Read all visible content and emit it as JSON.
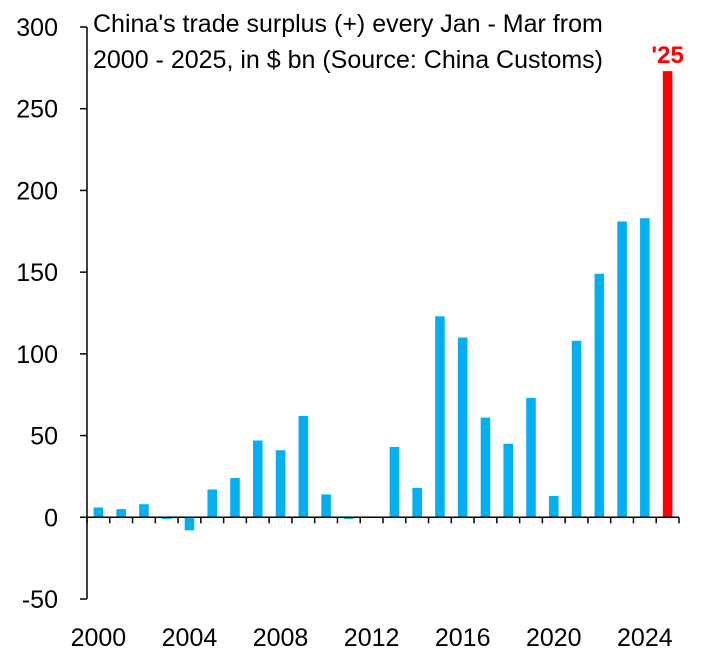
{
  "chart_data": {
    "type": "bar",
    "title_lines": [
      "China's trade surplus (+) every Jan - Mar from",
      "2000 - 2025, in $ bn (Source: China Customs)"
    ],
    "xlabel": "",
    "ylabel": "",
    "ylim": [
      -50,
      300
    ],
    "y_ticks": [
      -50,
      0,
      50,
      100,
      150,
      200,
      250,
      300
    ],
    "x_tick_labels": [
      "2000",
      "2004",
      "2008",
      "2012",
      "2016",
      "2020",
      "2024"
    ],
    "x": [
      2000,
      2001,
      2002,
      2003,
      2004,
      2005,
      2006,
      2007,
      2008,
      2009,
      2010,
      2011,
      2012,
      2013,
      2014,
      2015,
      2016,
      2017,
      2018,
      2019,
      2020,
      2021,
      2022,
      2023,
      2024,
      2025
    ],
    "values": [
      6,
      5,
      8,
      -1,
      -8,
      17,
      24,
      47,
      41,
      62,
      14,
      -1,
      0.5,
      43,
      18,
      123,
      110,
      61,
      45,
      73,
      13,
      108,
      149,
      181,
      183,
      273
    ],
    "highlight": {
      "label": "'25",
      "index": 25,
      "color": "#ff0000"
    },
    "bar_color": "#00b0f0",
    "grid": false,
    "legend": "none"
  }
}
